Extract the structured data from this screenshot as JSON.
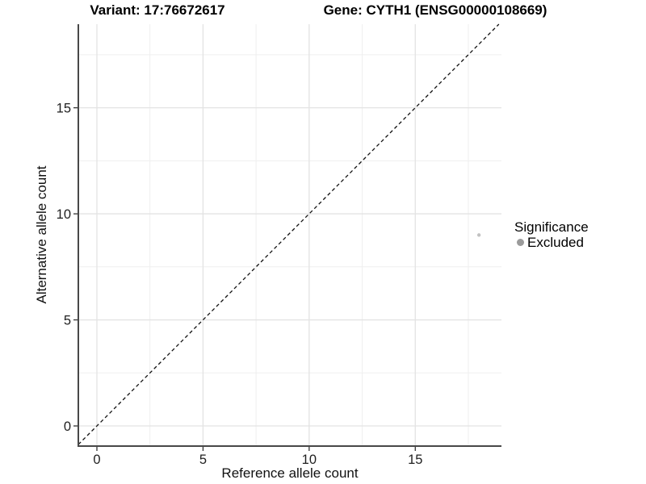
{
  "chart_data": {
    "type": "scatter",
    "title_left": "Variant: 17:76672617",
    "title_right": "Gene: CYTH1 (ENSG00000108669)",
    "xlabel": "Reference allele count",
    "ylabel": "Alternative allele count",
    "xlim": [
      -0.875,
      19.06
    ],
    "ylim": [
      -0.95,
      18.94
    ],
    "x_major_ticks": [
      0,
      5,
      10,
      15
    ],
    "y_major_ticks": [
      0,
      5,
      10,
      15
    ],
    "x_minor_ticks": [
      2.5,
      7.5,
      12.5,
      17.5
    ],
    "y_minor_ticks": [
      2.5,
      7.5,
      12.5,
      17.5
    ],
    "grid": true,
    "identity_line": {
      "slope": 1,
      "intercept": 0,
      "style": "dashed"
    },
    "points": [
      {
        "x": 18,
        "y": 9,
        "significance": "Excluded"
      }
    ],
    "legend": {
      "position": "right",
      "title": "Significance",
      "items": [
        {
          "label": "Excluded",
          "color": "#9b9b9b"
        }
      ]
    },
    "colors": {
      "background": "#ffffff",
      "grid_major": "#e3e3e3",
      "grid_minor": "#efefef",
      "axis_line": "#484848",
      "tick_mark": "#333333",
      "tick_label": "#1f1f1f",
      "dashed_line": "#111111",
      "point": "#c2c2c2"
    }
  }
}
